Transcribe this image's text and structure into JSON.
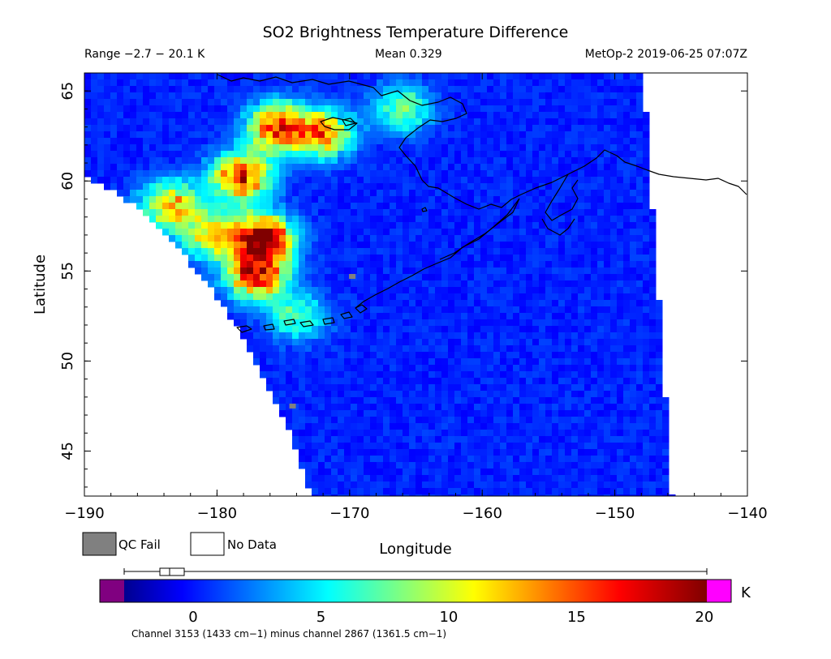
{
  "chart_data": {
    "type": "heatmap",
    "title": "SO2 Brightness Temperature Difference",
    "header": {
      "range": "Range −2.7 − 20.1 K",
      "mean": "Mean 0.329",
      "source": "MetOp-2 2019-06-25 07:07Z"
    },
    "xlabel": "Longitude",
    "ylabel": "Latitude",
    "xlim": [
      -190,
      -140
    ],
    "ylim": [
      42.5,
      66
    ],
    "xticks": [
      "−190",
      "−180",
      "−170",
      "−160",
      "−150",
      "−140"
    ],
    "xtick_values": [
      -190,
      -180,
      -170,
      -160,
      -150,
      -140
    ],
    "yticks": [
      "45",
      "50",
      "55",
      "60",
      "65"
    ],
    "ytick_values": [
      45,
      50,
      55,
      60,
      65
    ],
    "legend": {
      "qc_fail": "QC Fail",
      "no_data": "No Data",
      "qc_fail_color": "#808080",
      "no_data_color": "#ffffff"
    },
    "colorbar": {
      "unit": "K",
      "range": [
        -2.7,
        20.1
      ],
      "ticks": [
        "0",
        "5",
        "10",
        "15",
        "20"
      ],
      "tick_values": [
        0,
        5,
        10,
        15,
        20
      ],
      "caption": "Channel 3153 (1433 cm−1) minus channel 2867 (1361.5 cm−1)",
      "under_color": "#800080",
      "over_color": "#ff00ff",
      "colormap": [
        "#00008f",
        "#0000ff",
        "#00ffff",
        "#ffff00",
        "#ff0000",
        "#800000"
      ]
    },
    "swath_value": 0.3,
    "plumes": [
      {
        "lon": -176.5,
        "lat": 56.8,
        "peak": 20
      },
      {
        "lon": -177.0,
        "lat": 54.8,
        "peak": 17
      },
      {
        "lon": -178.2,
        "lat": 60.2,
        "peak": 16
      },
      {
        "lon": -175.5,
        "lat": 63.0,
        "peak": 16
      },
      {
        "lon": -172.0,
        "lat": 62.6,
        "peak": 13
      },
      {
        "lon": -183.5,
        "lat": 58.7,
        "peak": 12
      },
      {
        "lon": -180.5,
        "lat": 57.0,
        "peak": 11
      },
      {
        "lon": -166.0,
        "lat": 64.0,
        "peak": 8
      },
      {
        "lon": -174.0,
        "lat": 52.5,
        "peak": 7
      }
    ],
    "qc_fail_points": [
      {
        "lon": -169.8,
        "lat": 54.7
      },
      {
        "lon": -174.3,
        "lat": 47.5
      }
    ]
  }
}
